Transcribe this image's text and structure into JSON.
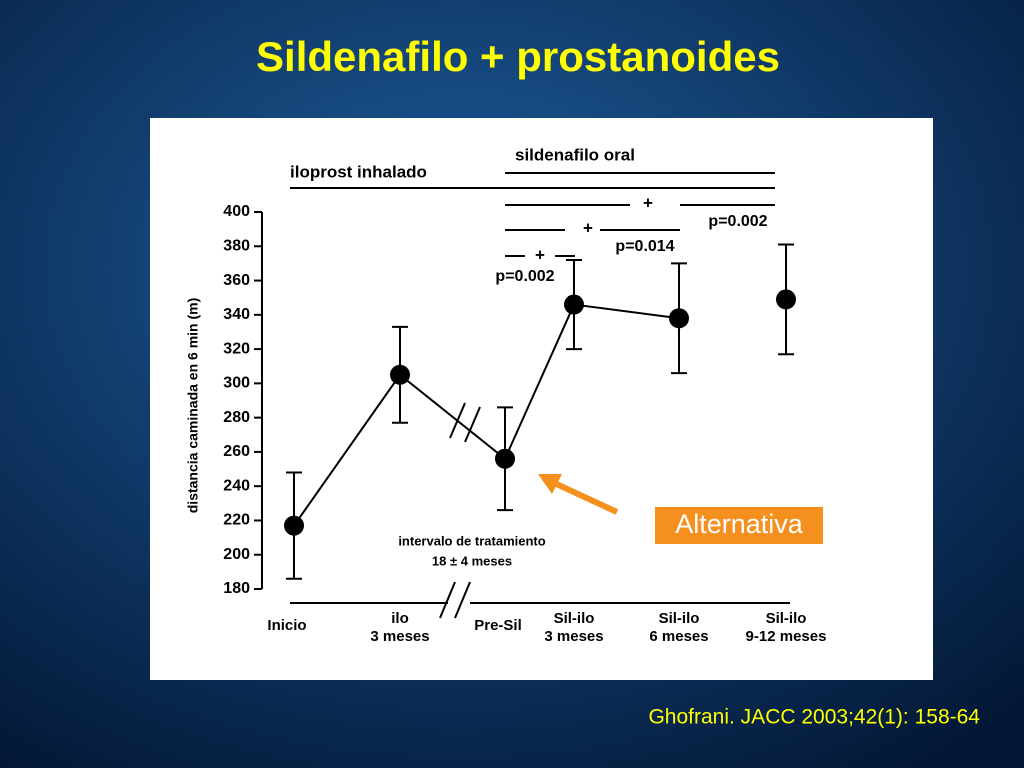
{
  "slide_title": "Sildenafilo + prostanoides",
  "citation": "Ghofrani. JACC 2003;42(1): 158-64",
  "chart_data": {
    "type": "line",
    "ylabel": "distancia caminada en 6 min (m)",
    "categories": [
      [
        "Inicio"
      ],
      [
        "ilo",
        "3 meses"
      ],
      [
        "Pre-Sil"
      ],
      [
        "Sil-ilo",
        "3 meses"
      ],
      [
        "Sil-ilo",
        "6 meses"
      ],
      [
        "Sil-ilo",
        "9-12 meses"
      ]
    ],
    "series": [
      {
        "color": "#000000",
        "values": [
          217,
          305,
          256,
          346,
          338,
          null
        ],
        "errors": [
          31,
          28,
          30,
          26,
          32,
          null
        ]
      },
      {
        "color": "#000000",
        "values": [
          null,
          null,
          null,
          null,
          null,
          349
        ],
        "errors": [
          null,
          null,
          null,
          null,
          null,
          32
        ]
      }
    ],
    "ylim": [
      180,
      400
    ],
    "yticks": [
      180,
      200,
      220,
      240,
      260,
      280,
      300,
      320,
      340,
      360,
      380,
      400
    ],
    "annotations": [
      "iloprost inhalado",
      "sildenafilo oral",
      "+",
      "+",
      "+",
      "p=0.002",
      "p=0.014",
      "p=0.002",
      "intervalo de tratamiento",
      "18 ± 4 meses",
      "Alternativa"
    ]
  }
}
